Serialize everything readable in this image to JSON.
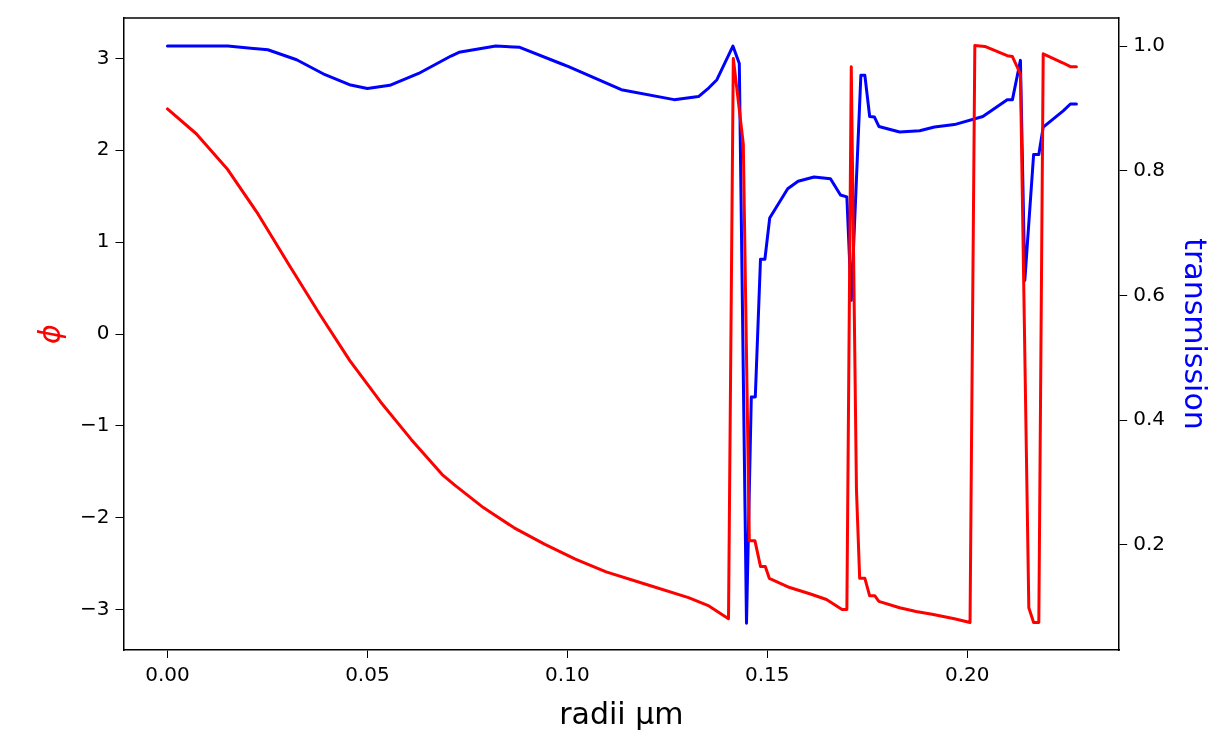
{
  "chart_data": {
    "type": "line",
    "xlabel": "radii μm",
    "ylabel": "ϕ",
    "y2label": "transmission",
    "xlim": [
      -0.011,
      0.238
    ],
    "xticks": [
      {
        "value": 0,
        "label": "0.00"
      },
      {
        "value": 0.05,
        "label": "0.05"
      },
      {
        "value": 0.1,
        "label": "0.10"
      },
      {
        "value": 0.15,
        "label": "0.15"
      },
      {
        "value": 0.2,
        "label": "0.20"
      }
    ],
    "ylim": [
      -3.44,
      3.44
    ],
    "yticks": [
      {
        "value": -3,
        "label": "−3"
      },
      {
        "value": -2,
        "label": "−2"
      },
      {
        "value": -1,
        "label": "−1"
      },
      0,
      1,
      2,
      3
    ],
    "y2lim": [
      0.031,
      1.045
    ],
    "y2ticks": [
      0.2,
      0.4,
      0.6,
      0.8,
      {
        "value": 1,
        "label": "1.0"
      }
    ],
    "grid": false,
    "legend": false,
    "marker": "none",
    "line_style": "solid",
    "series": [
      {
        "color": "#ff0000",
        "x": [
          0,
          0.0072,
          0.0149,
          0.0226,
          0.0303,
          0.038,
          0.0456,
          0.0533,
          0.061,
          0.0687,
          0.072,
          0.079,
          0.0867,
          0.0944,
          0.102,
          0.1097,
          0.12,
          0.1303,
          0.1354,
          0.1403,
          0.1415,
          0.144,
          0.1455,
          0.1469,
          0.1483,
          0.1495,
          0.1505,
          0.1556,
          0.1608,
          0.1648,
          0.1687,
          0.1699,
          0.171,
          0.1723,
          0.1731,
          0.1744,
          0.1756,
          0.1769,
          0.1779,
          0.1831,
          0.1872,
          0.1912,
          0.1968,
          0.2007,
          0.2019,
          0.2044,
          0.21,
          0.2113,
          0.2133,
          0.2154,
          0.2166,
          0.2179,
          0.219,
          0.224,
          0.2258,
          0.2273
        ],
        "values": [
          2.45,
          2.18,
          1.8,
          1.31,
          0.76,
          0.22,
          -0.29,
          -0.74,
          -1.15,
          -1.53,
          -1.65,
          -1.89,
          -2.11,
          -2.29,
          -2.45,
          -2.59,
          -2.73,
          -2.87,
          -2.96,
          -3.1,
          3.0,
          2.07,
          -2.25,
          -2.25,
          -2.53,
          -2.53,
          -2.66,
          -2.76,
          -2.83,
          -2.89,
          -3.0,
          -3.0,
          2.91,
          -1.7,
          -2.66,
          -2.66,
          -2.85,
          -2.85,
          -2.91,
          -2.98,
          -3.02,
          -3.05,
          -3.1,
          -3.14,
          3.14,
          3.13,
          3.03,
          3.02,
          2.83,
          -2.98,
          -3.14,
          -3.14,
          3.05,
          2.95,
          2.91,
          2.91
        ]
      },
      {
        "axis": "y2",
        "color": "#0000ff",
        "x": [
          0,
          0.0151,
          0.0251,
          0.0323,
          0.0394,
          0.0455,
          0.05,
          0.0556,
          0.0628,
          0.0709,
          0.0729,
          0.0821,
          0.0881,
          0.0983,
          0.1003,
          0.1135,
          0.1267,
          0.1328,
          0.1354,
          0.1374,
          0.1414,
          0.143,
          0.1448,
          0.146,
          0.147,
          0.1483,
          0.1494,
          0.1506,
          0.1551,
          0.1577,
          0.1617,
          0.1658,
          0.1683,
          0.1699,
          0.171,
          0.1734,
          0.1744,
          0.1756,
          0.1768,
          0.1779,
          0.1831,
          0.1881,
          0.1918,
          0.1968,
          0.2039,
          0.21,
          0.2113,
          0.2133,
          0.2144,
          0.2166,
          0.2179,
          0.219,
          0.224,
          0.2258,
          0.2273
        ],
        "values": [
          1.0,
          1.0,
          0.994,
          0.978,
          0.954,
          0.938,
          0.932,
          0.937,
          0.956,
          0.984,
          0.99,
          1.0,
          0.998,
          0.972,
          0.967,
          0.93,
          0.914,
          0.919,
          0.933,
          0.946,
          1.0,
          0.972,
          0.074,
          0.437,
          0.437,
          0.658,
          0.658,
          0.724,
          0.771,
          0.783,
          0.79,
          0.787,
          0.761,
          0.758,
          0.592,
          0.953,
          0.953,
          0.887,
          0.886,
          0.871,
          0.862,
          0.864,
          0.87,
          0.874,
          0.887,
          0.914,
          0.914,
          0.977,
          0.624,
          0.826,
          0.826,
          0.87,
          0.896,
          0.907,
          0.907
        ]
      }
    ]
  }
}
